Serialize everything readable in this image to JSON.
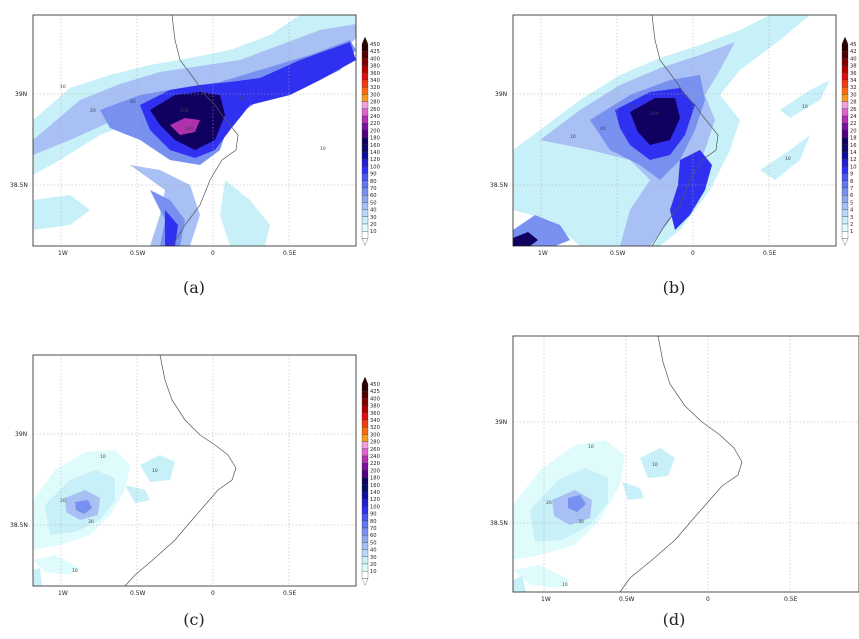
{
  "panels": [
    {
      "id": "a",
      "caption": "(a)",
      "lat_ticks": [
        "39N",
        "38.5N"
      ],
      "lon_ticks": [
        "1W",
        "0.5W",
        "0",
        "0.5E"
      ],
      "colorbar": [
        "450",
        "425",
        "400",
        "380",
        "360",
        "340",
        "320",
        "300",
        "280",
        "260",
        "240",
        "220",
        "200",
        "180",
        "160",
        "140",
        "120",
        "100",
        "90",
        "80",
        "70",
        "60",
        "50",
        "40",
        "30",
        "20",
        "10"
      ],
      "contour_labels": [
        "10",
        "20",
        "40",
        "60",
        "100",
        "180",
        "10"
      ]
    },
    {
      "id": "b",
      "caption": "(b)",
      "lat_ticks": [
        "39N",
        "38.5N"
      ],
      "lon_ticks": [
        "1W",
        "0.5W",
        "0",
        "0.5E"
      ],
      "colorbar": [
        "45",
        "42",
        "40",
        "38",
        "36",
        "34",
        "32",
        "30",
        "28",
        "26",
        "24",
        "22",
        "20",
        "18",
        "16",
        "14",
        "12",
        "10",
        "9",
        "8",
        "7",
        "6",
        "5",
        "4",
        "3",
        "2",
        "1"
      ],
      "contour_labels": [
        "10",
        "20",
        "40",
        "100",
        "10",
        "10"
      ]
    },
    {
      "id": "c",
      "caption": "(c)",
      "lat_ticks": [
        "39N",
        "38.5N"
      ],
      "lon_ticks": [
        "1W",
        "0.5W",
        "0",
        "0.5E"
      ],
      "colorbar": [
        "450",
        "425",
        "400",
        "380",
        "360",
        "340",
        "320",
        "300",
        "280",
        "260",
        "240",
        "220",
        "200",
        "180",
        "160",
        "140",
        "120",
        "100",
        "90",
        "80",
        "70",
        "60",
        "50",
        "40",
        "30",
        "20",
        "10"
      ],
      "contour_labels": [
        "10",
        "20",
        "30",
        "10",
        "10"
      ]
    },
    {
      "id": "d",
      "caption": "(d)",
      "lat_ticks": [
        "39N",
        "38.5N"
      ],
      "lon_ticks": [
        "1W",
        "0.5W",
        "0",
        "0.5E"
      ],
      "colorbar": [],
      "contour_labels": [
        "10",
        "20",
        "30",
        "10",
        "10"
      ]
    }
  ],
  "colorbar_colors": [
    "#2a0000",
    "#500000",
    "#800000",
    "#b00000",
    "#e01010",
    "#f03c10",
    "#f86a10",
    "#f89a20",
    "#f0a0e0",
    "#e060d0",
    "#b030b0",
    "#7a10a0",
    "#500080",
    "#100060",
    "#0a0a6a",
    "#1010a0",
    "#2020d0",
    "#3030f0",
    "#4a58f0",
    "#6078f0",
    "#7890f0",
    "#90a8f0",
    "#a8c0f4",
    "#b8d8f8",
    "#c8f0f8",
    "#e0fbfb",
    "#ffffff"
  ]
}
